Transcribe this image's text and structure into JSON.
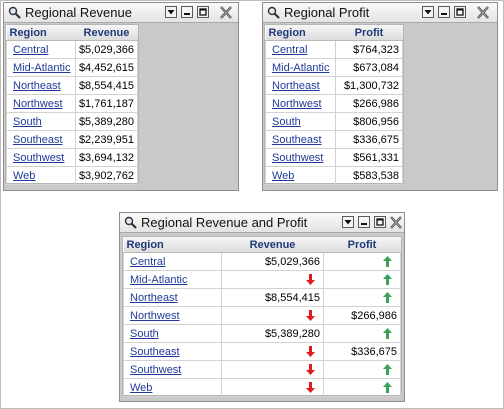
{
  "panels": {
    "revenue": {
      "title": "Regional Revenue",
      "headers": [
        "Region",
        "Revenue"
      ],
      "rows": [
        {
          "region": "Central",
          "value": "$5,029,366"
        },
        {
          "region": "Mid-Atlantic",
          "value": "$4,452,615"
        },
        {
          "region": "Northeast",
          "value": "$8,554,415"
        },
        {
          "region": "Northwest",
          "value": "$1,761,187"
        },
        {
          "region": "South",
          "value": "$5,389,280"
        },
        {
          "region": "Southeast",
          "value": "$2,239,951"
        },
        {
          "region": "Southwest",
          "value": "$3,694,132"
        },
        {
          "region": "Web",
          "value": "$3,902,762"
        }
      ]
    },
    "profit": {
      "title": "Regional Profit",
      "headers": [
        "Region",
        "Profit"
      ],
      "rows": [
        {
          "region": "Central",
          "value": "$764,323"
        },
        {
          "region": "Mid-Atlantic",
          "value": "$673,084"
        },
        {
          "region": "Northeast",
          "value": "$1,300,732"
        },
        {
          "region": "Northwest",
          "value": "$266,986"
        },
        {
          "region": "South",
          "value": "$806,956"
        },
        {
          "region": "Southeast",
          "value": "$336,675"
        },
        {
          "region": "Southwest",
          "value": "$561,331"
        },
        {
          "region": "Web",
          "value": "$583,538"
        }
      ]
    },
    "combined": {
      "title": "Regional Revenue and Profit",
      "headers": [
        "Region",
        "Revenue",
        "Profit"
      ],
      "rows": [
        {
          "region": "Central",
          "revenue": "$5,029,366",
          "revenue_icon": "",
          "profit": "",
          "profit_icon": "arrow-up-icon"
        },
        {
          "region": "Mid-Atlantic",
          "revenue": "",
          "revenue_icon": "arrow-down-icon",
          "profit": "",
          "profit_icon": "arrow-up-icon"
        },
        {
          "region": "Northeast",
          "revenue": "$8,554,415",
          "revenue_icon": "",
          "profit": "",
          "profit_icon": "arrow-up-icon"
        },
        {
          "region": "Northwest",
          "revenue": "",
          "revenue_icon": "arrow-down-icon",
          "profit": "$266,986",
          "profit_icon": ""
        },
        {
          "region": "South",
          "revenue": "$5,389,280",
          "revenue_icon": "",
          "profit": "",
          "profit_icon": "arrow-up-icon"
        },
        {
          "region": "Southeast",
          "revenue": "",
          "revenue_icon": "arrow-down-icon",
          "profit": "$336,675",
          "profit_icon": ""
        },
        {
          "region": "Southwest",
          "revenue": "",
          "revenue_icon": "arrow-down-icon",
          "profit": "",
          "profit_icon": "arrow-up-icon"
        },
        {
          "region": "Web",
          "revenue": "",
          "revenue_icon": "arrow-down-icon",
          "profit": "",
          "profit_icon": "arrow-up-icon"
        }
      ]
    }
  },
  "icons": {
    "title": "magnifier-icon",
    "menu": "dropdown-icon",
    "minimize": "minimize-icon",
    "maximize": "maximize-icon",
    "close": "close-icon"
  },
  "colors": {
    "link": "#1f3a98",
    "header_text": "#1f3a7a",
    "arrow_up": "#3aa05a",
    "arrow_down": "#e0191b",
    "panel_bg": "#c9c9c9"
  }
}
